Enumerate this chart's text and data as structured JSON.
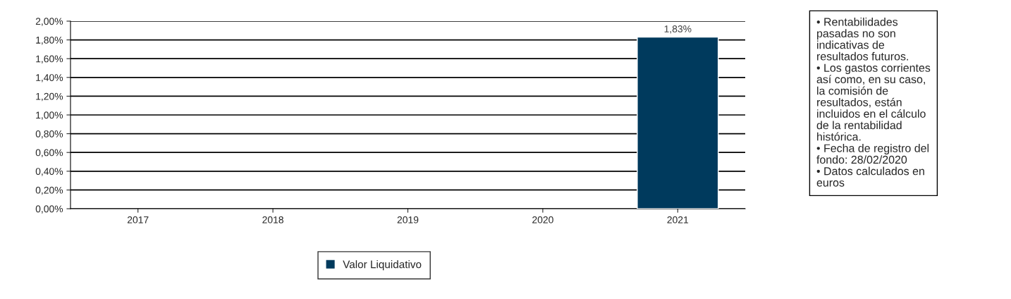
{
  "chart_data": {
    "type": "bar",
    "categories": [
      "2017",
      "2018",
      "2019",
      "2020",
      "2021"
    ],
    "series": [
      {
        "name": "Valor Liquidativo",
        "color": "#003a5d",
        "values": [
          null,
          null,
          null,
          null,
          1.83
        ],
        "value_labels": [
          null,
          null,
          null,
          null,
          "1,83%"
        ]
      }
    ],
    "ylim": [
      0,
      2
    ],
    "yticks": [
      {
        "value": 0,
        "label": "0,00%"
      },
      {
        "value": 0.2,
        "label": "0,20%"
      },
      {
        "value": 0.4,
        "label": "0,40%"
      },
      {
        "value": 0.6,
        "label": "0,60%"
      },
      {
        "value": 0.8,
        "label": "0,80%"
      },
      {
        "value": 1.0,
        "label": "1,00%"
      },
      {
        "value": 1.2,
        "label": "1,20%"
      },
      {
        "value": 1.4,
        "label": "1,40%"
      },
      {
        "value": 1.6,
        "label": "1,60%"
      },
      {
        "value": 1.8,
        "label": "1,80%"
      },
      {
        "value": 2.0,
        "label": "2,00%"
      }
    ],
    "grid": "y",
    "legend": "bottom",
    "annotations": [
      "• Rentabilidades\npasadas no son\nindicativas de\nresultados futuros.\n• Los gastos corrientes\nasí como, en su caso,\nla comisión de\nresultados, están\nincluidos en el cálculo\nde la rentabilidad\nhistórica.\n• Fecha de registro del\nfondo: 28/02/2020\n• Datos calculados en\neuros"
    ]
  }
}
